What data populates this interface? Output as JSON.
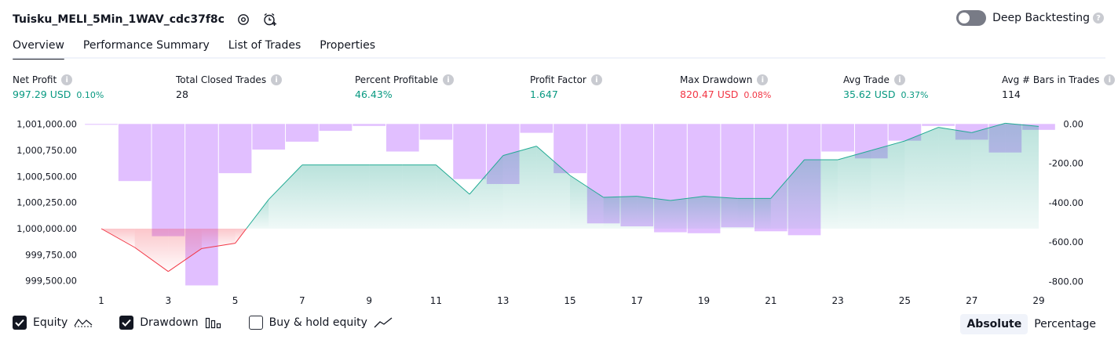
{
  "header": {
    "title": "Tuisku_MELI_5Min_1WAV_cdc37f8c",
    "deep_backtesting_label": "Deep Backtesting"
  },
  "tabs": [
    {
      "label": "Overview",
      "active": true
    },
    {
      "label": "Performance Summary"
    },
    {
      "label": "List of Trades"
    },
    {
      "label": "Properties"
    }
  ],
  "metrics": [
    {
      "label": "Net Profit",
      "value": "997.29 USD",
      "pct": "0.10%",
      "color": "green"
    },
    {
      "label": "Total Closed Trades",
      "value": "28",
      "pct": "",
      "color": "black"
    },
    {
      "label": "Percent Profitable",
      "value": "46.43%",
      "pct": "",
      "color": "green"
    },
    {
      "label": "Profit Factor",
      "value": "1.647",
      "pct": "",
      "color": "green"
    },
    {
      "label": "Max Drawdown",
      "value": "820.47 USD",
      "pct": "0.08%",
      "color": "red"
    },
    {
      "label": "Avg Trade",
      "value": "35.62 USD",
      "pct": "0.37%",
      "color": "green"
    },
    {
      "label": "Avg # Bars in Trades",
      "value": "114",
      "pct": "",
      "color": "black"
    }
  ],
  "chart_data": {
    "type": "line",
    "x_tick_labels": [
      "1",
      "3",
      "5",
      "7",
      "9",
      "11",
      "13",
      "15",
      "17",
      "19",
      "21",
      "23",
      "25",
      "27",
      "29"
    ],
    "left_axis_ticks": [
      "1,001,000.00",
      "1,000,750.00",
      "1,000,500.00",
      "1,000,250.00",
      "1,000,000.00",
      "999,750.00",
      "999,500.00"
    ],
    "right_axis_ticks": [
      "0.00",
      "-200.00",
      "-400.00",
      "-600.00",
      "-800.00"
    ],
    "left_ylim": [
      999400,
      1001050
    ],
    "right_ylim": [
      -850,
      25
    ],
    "baseline": 1000000,
    "equity": {
      "name": "Equity",
      "x": [
        1,
        2,
        3,
        4,
        5,
        6,
        7,
        8,
        9,
        10,
        11,
        12,
        13,
        14,
        15,
        16,
        17,
        18,
        19,
        20,
        21,
        22,
        23,
        24,
        25,
        26,
        27,
        28,
        29
      ],
      "values": [
        1000000,
        999820,
        999590,
        999810,
        999860,
        1000280,
        1000610,
        1000610,
        1000610,
        1000610,
        1000610,
        1000330,
        1000700,
        1000790,
        1000510,
        1000300,
        1000310,
        1000270,
        1000310,
        1000290,
        1000290,
        1000660,
        1000660,
        1000750,
        1000840,
        1000970,
        1000920,
        1001010,
        1000980
      ]
    },
    "drawdown": {
      "name": "Drawdown",
      "x": [
        1,
        2,
        3,
        4,
        5,
        6,
        7,
        8,
        9,
        10,
        11,
        12,
        13,
        14,
        15,
        16,
        17,
        18,
        19,
        20,
        21,
        22,
        23,
        24,
        25,
        26,
        27,
        28,
        29
      ],
      "values": [
        0,
        -290,
        -570,
        -820,
        -250,
        -130,
        -90,
        -35,
        -10,
        -140,
        -80,
        -280,
        -305,
        -45,
        -250,
        -505,
        -520,
        -550,
        -555,
        -525,
        -545,
        -565,
        -140,
        -175,
        -85,
        -10,
        -80,
        -145,
        -30
      ]
    },
    "legend": [
      {
        "label": "Equity",
        "checked": true
      },
      {
        "label": "Drawdown",
        "checked": true
      },
      {
        "label": "Buy & hold equity",
        "checked": false
      }
    ],
    "modes": [
      "Absolute",
      "Percentage"
    ],
    "active_mode": "Absolute",
    "colors": {
      "equity_line": "#22ab94",
      "equity_loss_line": "#f23645",
      "drawdown_bar": "#e1bfff",
      "equity_fill": "#089981"
    }
  }
}
